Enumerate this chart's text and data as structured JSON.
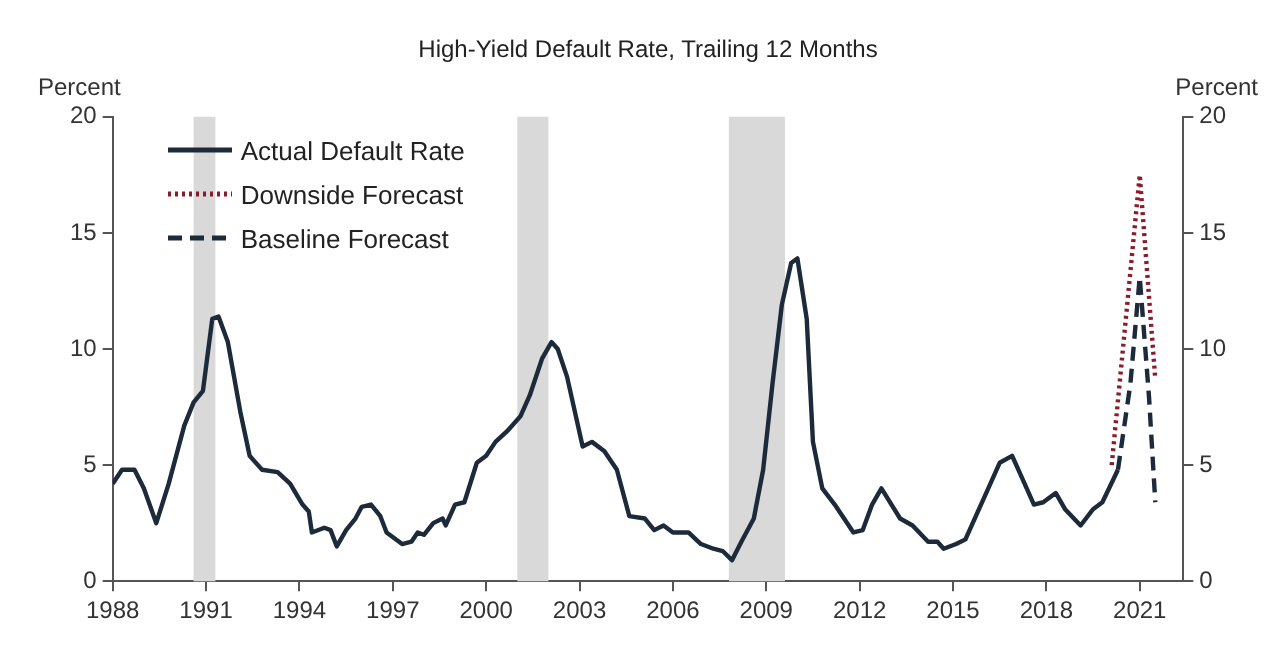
{
  "chart_data": {
    "type": "line",
    "title": "High-Yield Default Rate, Trailing 12 Months",
    "ylabel": "Percent",
    "y2label": "Percent",
    "series": [
      {
        "name": "Actual Default Rate",
        "color": "#1c2a3a",
        "line_style": "solid",
        "x": [
          1988.0,
          1988.3,
          1988.7,
          1989.0,
          1989.4,
          1989.8,
          1990.3,
          1990.6,
          1990.9,
          1991.2,
          1991.4,
          1991.7,
          1992.1,
          1992.4,
          1992.8,
          1993.3,
          1993.7,
          1994.1,
          1994.3,
          1994.4,
          1994.8,
          1995.0,
          1995.2,
          1995.5,
          1995.8,
          1996.0,
          1996.3,
          1996.6,
          1996.8,
          1997.3,
          1997.6,
          1997.8,
          1998.0,
          1998.3,
          1998.6,
          1998.7,
          1999.0,
          1999.3,
          1999.7,
          2000.0,
          2000.3,
          2000.7,
          2001.1,
          2001.4,
          2001.8,
          2002.1,
          2002.3,
          2002.6,
          2003.1,
          2003.4,
          2003.8,
          2004.2,
          2004.6,
          2005.1,
          2005.4,
          2005.7,
          2006.0,
          2006.5,
          2006.9,
          2007.3,
          2007.6,
          2007.9,
          2008.2,
          2008.6,
          2008.9,
          2009.2,
          2009.5,
          2009.8,
          2010.0,
          2010.3,
          2010.5,
          2010.8,
          2011.2,
          2011.5,
          2011.8,
          2012.1,
          2012.4,
          2012.7,
          2013.3,
          2013.7,
          2014.2,
          2014.5,
          2014.7,
          2015.1,
          2015.4,
          2015.9,
          2016.5,
          2016.9,
          2017.3,
          2017.6,
          2017.9,
          2018.3,
          2018.6,
          2019.1,
          2019.5,
          2019.8,
          2020.3
        ],
        "values": [
          4.2,
          4.8,
          4.8,
          4.0,
          2.5,
          4.2,
          6.7,
          7.7,
          8.2,
          11.3,
          11.4,
          10.3,
          7.3,
          5.4,
          4.8,
          4.7,
          4.2,
          3.3,
          3.0,
          2.1,
          2.3,
          2.2,
          1.5,
          2.2,
          2.7,
          3.2,
          3.3,
          2.8,
          2.1,
          1.6,
          1.7,
          2.1,
          2.0,
          2.5,
          2.7,
          2.4,
          3.3,
          3.4,
          5.1,
          5.4,
          6.0,
          6.5,
          7.1,
          8.0,
          9.6,
          10.3,
          10.0,
          8.8,
          5.8,
          6.0,
          5.6,
          4.8,
          2.8,
          2.7,
          2.2,
          2.4,
          2.1,
          2.1,
          1.6,
          1.4,
          1.3,
          0.9,
          1.7,
          2.7,
          4.8,
          8.5,
          11.9,
          13.7,
          13.9,
          11.3,
          6.0,
          4.0,
          3.3,
          2.7,
          2.1,
          2.2,
          3.3,
          4.0,
          2.7,
          2.4,
          1.7,
          1.7,
          1.4,
          1.6,
          1.8,
          3.3,
          5.1,
          5.4,
          4.2,
          3.3,
          3.4,
          3.8,
          3.1,
          2.4,
          3.1,
          3.4,
          4.8
        ]
      },
      {
        "name": "Downside Forecast",
        "color": "#8b1a2b",
        "line_style": "dotted",
        "x": [
          2020.1,
          2021.0,
          2021.5
        ],
        "values": [
          5.0,
          17.5,
          8.7
        ]
      },
      {
        "name": "Baseline Forecast",
        "color": "#1c2a3a",
        "line_style": "dashed",
        "x": [
          2020.3,
          2020.7,
          2021.0,
          2021.3,
          2021.5
        ],
        "values": [
          4.8,
          8.5,
          13.1,
          7.9,
          3.4
        ]
      }
    ],
    "xlim": [
      1988,
      2022.4
    ],
    "xticks": [
      1988,
      1991,
      1994,
      1997,
      2000,
      2003,
      2006,
      2009,
      2012,
      2015,
      2018,
      2021
    ],
    "ylim": [
      0,
      20
    ],
    "yticks": [
      0,
      5,
      10,
      15,
      20
    ],
    "y2lim": [
      0,
      20
    ],
    "y2ticks": [
      0,
      5,
      10,
      15,
      20
    ],
    "bands": [
      {
        "axis": "x",
        "from": 1990.6,
        "to": 1991.3,
        "color": "#d9d9d9"
      },
      {
        "axis": "x",
        "from": 2001.0,
        "to": 2002.0,
        "color": "#d9d9d9"
      },
      {
        "axis": "x",
        "from": 2007.8,
        "to": 2009.6,
        "color": "#d9d9d9"
      }
    ],
    "grid": false,
    "legend": "top left",
    "marker": "none"
  }
}
